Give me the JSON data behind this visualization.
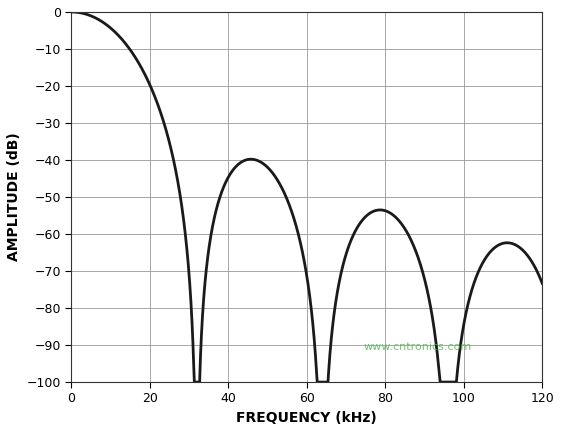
{
  "title": "",
  "xlabel": "FREQUENCY (kHz)",
  "ylabel": "AMPLITUDE (dB)",
  "xlim": [
    0,
    120
  ],
  "ylim": [
    -100,
    0
  ],
  "xticks": [
    0,
    20,
    40,
    60,
    80,
    100,
    120
  ],
  "yticks": [
    0,
    -10,
    -20,
    -30,
    -40,
    -50,
    -60,
    -70,
    -80,
    -90,
    -100
  ],
  "line_color": "#1a1a1a",
  "line_width": 2.0,
  "background_color": "#ffffff",
  "grid_color": "#999999",
  "notch_freq_khz": 32,
  "sinc_order": 3,
  "watermark": "www.cntronics.com",
  "watermark_color": "#5ab55a",
  "watermark_fontsize": 8
}
